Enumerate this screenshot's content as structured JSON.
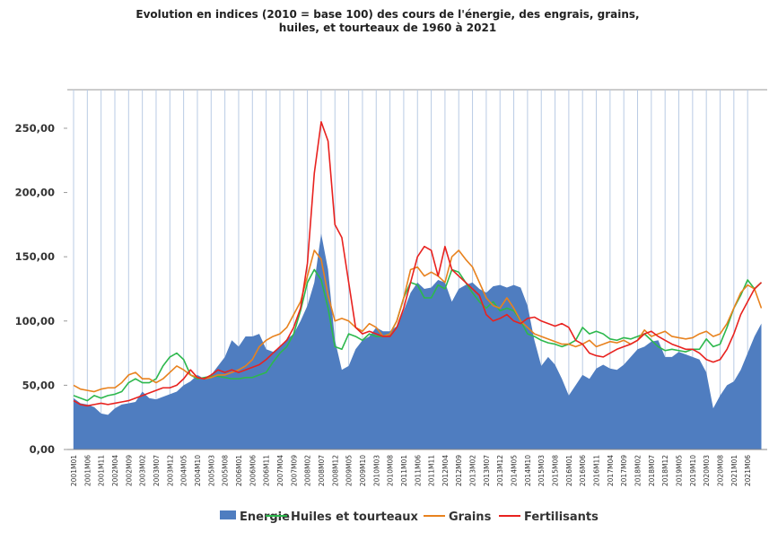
{
  "chart_data": {
    "type": "area-line",
    "title": [
      "Evolution en indices (2010 = base 100) des cours de l'énergie, des  engrais, grains,",
      "huiles, et tourteaux de 1960 à 2021"
    ],
    "categories": [
      "2001M01",
      null,
      "2001M06",
      null,
      "2001M11",
      null,
      "2002M04",
      null,
      "2002M09",
      null,
      "2003M02",
      null,
      "2003M07",
      null,
      "2003M12",
      null,
      "2004M05",
      null,
      "2004M10",
      null,
      "2005M03",
      null,
      "2005M08",
      null,
      "2006M01",
      null,
      "2006M06",
      null,
      "2006M11",
      null,
      "2007M04",
      null,
      "2007M09",
      null,
      "2008M02",
      null,
      "2008M07",
      null,
      "2008M12",
      null,
      "2009M05",
      null,
      "2009M10",
      null,
      "2010M03",
      null,
      "2010M08",
      null,
      "2011M01",
      null,
      "2011M06",
      null,
      "2011M11",
      null,
      "2012M04",
      null,
      "2012M09",
      null,
      "2013M02",
      null,
      "2013M07",
      null,
      "2013M12",
      null,
      "2014M05",
      null,
      "2014M10",
      null,
      "2015M03",
      null,
      "2015M08",
      null,
      "2016M01",
      null,
      "2016M06",
      null,
      "2016M11",
      null,
      "2017M04",
      null,
      "2017M09",
      null,
      "2018M02",
      null,
      "2018M07",
      null,
      "2018M12",
      null,
      "2019M05",
      null,
      "2019M10",
      null,
      "2020M03",
      null,
      "2020M08",
      null,
      "2021M01",
      null,
      "2021M06",
      null,
      null
    ],
    "series": [
      {
        "name": "Energie",
        "kind": "area",
        "color": "#4f7dc0",
        "values": [
          40,
          36,
          35,
          33,
          28,
          27,
          32,
          35,
          36,
          37,
          45,
          40,
          39,
          41,
          43,
          45,
          50,
          53,
          58,
          55,
          58,
          65,
          72,
          85,
          80,
          88,
          88,
          90,
          78,
          76,
          80,
          86,
          90,
          100,
          112,
          130,
          168,
          140,
          85,
          62,
          65,
          78,
          85,
          88,
          95,
          92,
          92,
          96,
          108,
          122,
          130,
          125,
          126,
          132,
          130,
          115,
          125,
          128,
          130,
          125,
          122,
          127,
          128,
          126,
          128,
          126,
          112,
          85,
          65,
          72,
          66,
          55,
          42,
          50,
          58,
          55,
          63,
          66,
          63,
          62,
          66,
          72,
          78,
          80,
          84,
          85,
          72,
          72,
          76,
          74,
          72,
          70,
          60,
          32,
          42,
          50,
          53,
          62,
          75,
          88,
          98
        ]
      },
      {
        "name": "Huiles et tourteaux",
        "kind": "line",
        "color": "#2db84d",
        "values": [
          42,
          40,
          38,
          42,
          40,
          42,
          43,
          45,
          52,
          55,
          52,
          52,
          55,
          65,
          72,
          75,
          70,
          58,
          55,
          56,
          57,
          57,
          56,
          55,
          55,
          56,
          56,
          58,
          60,
          68,
          75,
          80,
          90,
          108,
          130,
          140,
          132,
          110,
          80,
          78,
          90,
          88,
          85,
          90,
          88,
          88,
          90,
          100,
          118,
          130,
          128,
          118,
          118,
          128,
          125,
          140,
          138,
          130,
          122,
          115,
          110,
          115,
          108,
          110,
          108,
          100,
          90,
          88,
          85,
          83,
          82,
          80,
          82,
          85,
          95,
          90,
          92,
          90,
          86,
          85,
          87,
          86,
          88,
          90,
          85,
          80,
          77,
          78,
          77,
          76,
          78,
          78,
          86,
          80,
          82,
          95,
          110,
          120,
          132,
          125,
          130
        ]
      },
      {
        "name": "Grains",
        "kind": "line",
        "color": "#e8821e",
        "values": [
          50,
          47,
          46,
          45,
          47,
          48,
          48,
          52,
          58,
          60,
          55,
          55,
          52,
          55,
          60,
          65,
          62,
          58,
          56,
          55,
          56,
          58,
          58,
          60,
          62,
          65,
          70,
          80,
          85,
          88,
          90,
          95,
          105,
          115,
          135,
          155,
          148,
          120,
          100,
          102,
          100,
          95,
          92,
          98,
          95,
          88,
          90,
          100,
          118,
          140,
          142,
          135,
          138,
          135,
          130,
          150,
          155,
          148,
          142,
          130,
          118,
          112,
          110,
          118,
          110,
          100,
          95,
          90,
          88,
          86,
          84,
          82,
          82,
          80,
          82,
          85,
          80,
          82,
          84,
          83,
          85,
          82,
          85,
          93,
          88,
          90,
          92,
          88,
          87,
          86,
          87,
          90,
          92,
          88,
          90,
          98,
          110,
          122,
          128,
          125,
          110
        ]
      },
      {
        "name": "Fertilisants",
        "kind": "line",
        "color": "#e8221f",
        "values": [
          38,
          35,
          34,
          35,
          36,
          35,
          36,
          37,
          38,
          40,
          42,
          44,
          46,
          48,
          48,
          50,
          55,
          62,
          56,
          55,
          58,
          62,
          60,
          62,
          60,
          62,
          64,
          66,
          70,
          75,
          80,
          85,
          95,
          110,
          145,
          215,
          255,
          240,
          175,
          165,
          130,
          95,
          90,
          92,
          90,
          88,
          88,
          95,
          110,
          130,
          150,
          158,
          155,
          135,
          158,
          140,
          135,
          130,
          125,
          120,
          105,
          100,
          102,
          105,
          100,
          98,
          102,
          103,
          100,
          98,
          96,
          98,
          95,
          85,
          82,
          75,
          73,
          72,
          75,
          78,
          80,
          82,
          85,
          90,
          92,
          88,
          85,
          82,
          80,
          78,
          78,
          75,
          70,
          68,
          70,
          78,
          90,
          105,
          115,
          125,
          130
        ]
      }
    ],
    "ylim": [
      0,
      280
    ],
    "yticks": [
      {
        "value": 0,
        "label": "0,00"
      },
      {
        "value": 50,
        "label": "50,00"
      },
      {
        "value": 100,
        "label": "100,00"
      },
      {
        "value": 150,
        "label": "150,00"
      },
      {
        "value": 200,
        "label": "200,00"
      },
      {
        "value": 250,
        "label": "250,00"
      }
    ],
    "grid": "x"
  }
}
